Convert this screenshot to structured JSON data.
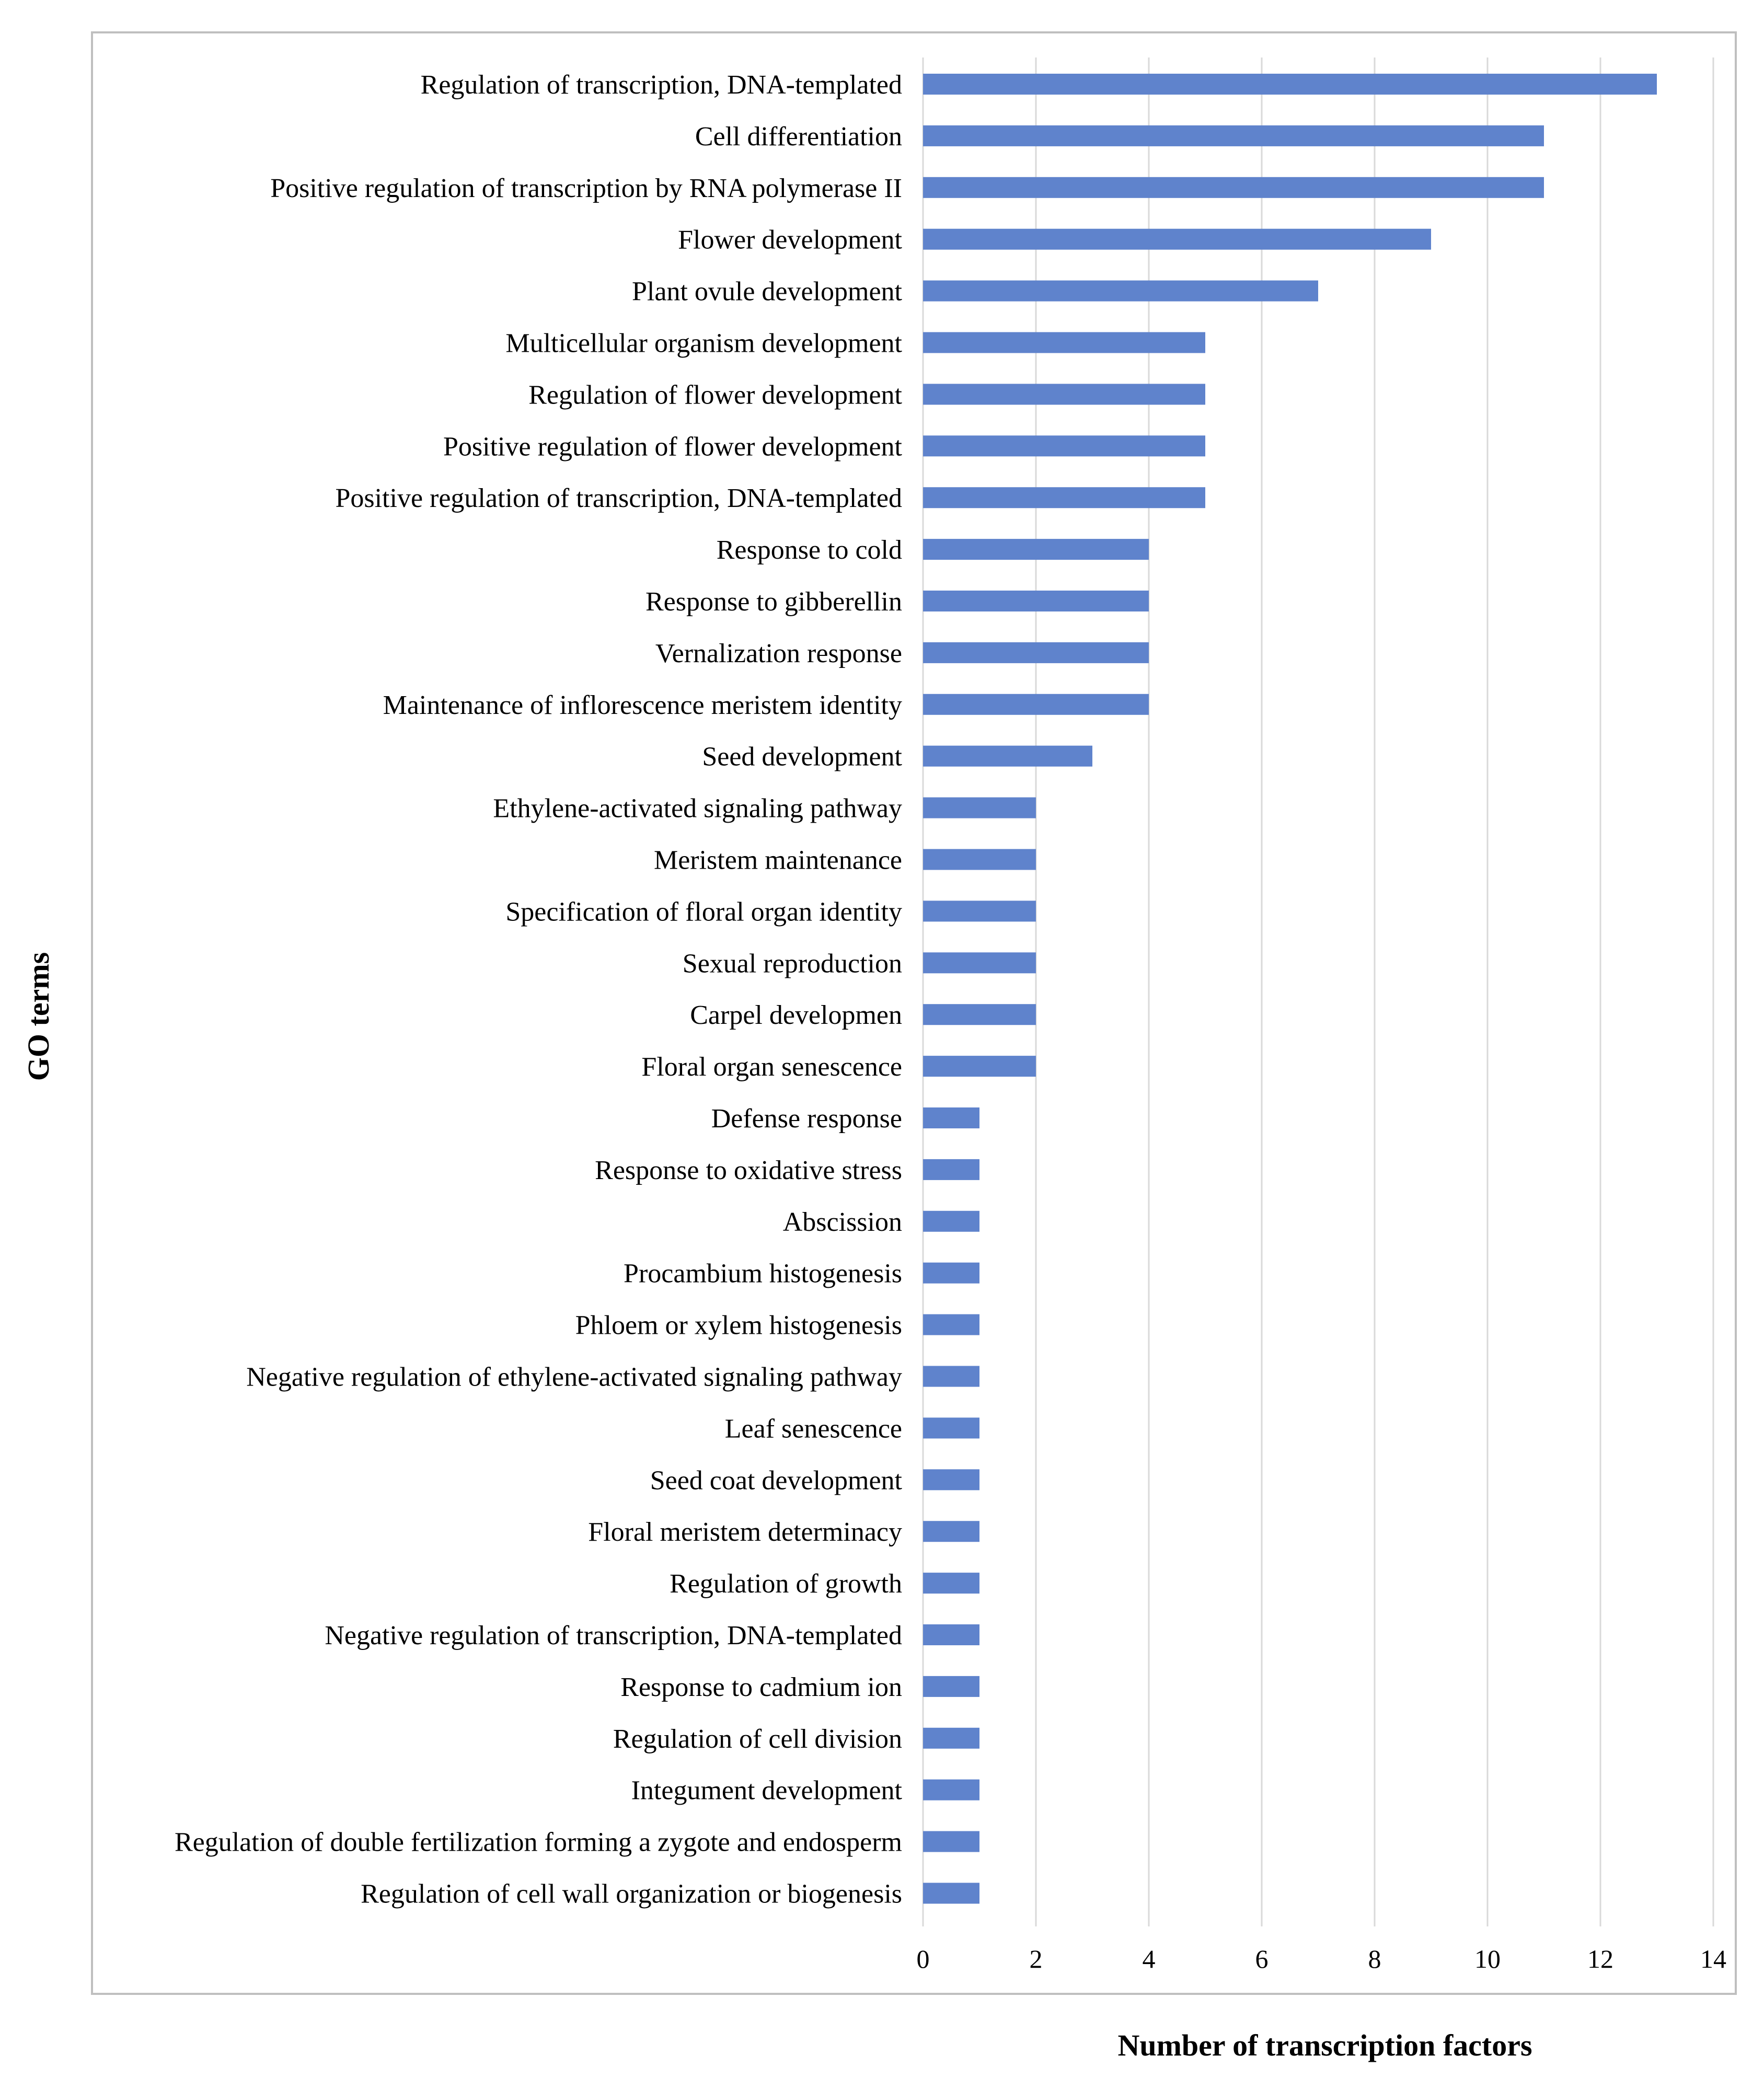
{
  "colors": {
    "bar": "#5f83cc",
    "grid": "#d9d9d9",
    "frame": "#bfbfbf",
    "text": "#000000"
  },
  "chart_data": {
    "type": "bar",
    "orientation": "horizontal",
    "title": "",
    "xlabel": "Number of transcription factors",
    "ylabel": "GO  terms",
    "xlim": [
      0,
      14
    ],
    "xticks": [
      0,
      2,
      4,
      6,
      8,
      10,
      12,
      14
    ],
    "grid": "vertical",
    "categories": [
      "Regulation of transcription, DNA-templated",
      "Cell differentiation",
      "Positive regulation of transcription by RNA polymerase II",
      "Flower development",
      "Plant ovule development",
      "Multicellular organism development",
      "Regulation of flower development",
      "Positive regulation of flower development",
      "Positive regulation of transcription, DNA-templated",
      "Response to cold",
      "Response to gibberellin",
      "Vernalization response",
      "Maintenance of inflorescence meristem identity",
      "Seed development",
      "Ethylene-activated signaling pathway",
      "Meristem maintenance",
      "Specification of floral organ identity",
      "Sexual reproduction",
      "Carpel developmen",
      "Floral organ senescence",
      "Defense response",
      "Response to oxidative stress",
      "Abscission",
      "Procambium histogenesis",
      "Phloem or xylem histogenesis",
      "Negative regulation of ethylene-activated signaling pathway",
      "Leaf senescence",
      "Seed coat development",
      "Floral meristem determinacy",
      "Regulation of growth",
      "Negative regulation of transcription, DNA-templated",
      "Response to cadmium ion",
      "Regulation of cell division",
      "Integument development",
      "Regulation of double fertilization forming a zygote and endosperm",
      "Regulation of cell wall organization or biogenesis"
    ],
    "values": [
      13,
      11,
      11,
      9,
      7,
      5,
      5,
      5,
      5,
      4,
      4,
      4,
      4,
      3,
      2,
      2,
      2,
      2,
      2,
      2,
      1,
      1,
      1,
      1,
      1,
      1,
      1,
      1,
      1,
      1,
      1,
      1,
      1,
      1,
      1,
      1
    ]
  }
}
